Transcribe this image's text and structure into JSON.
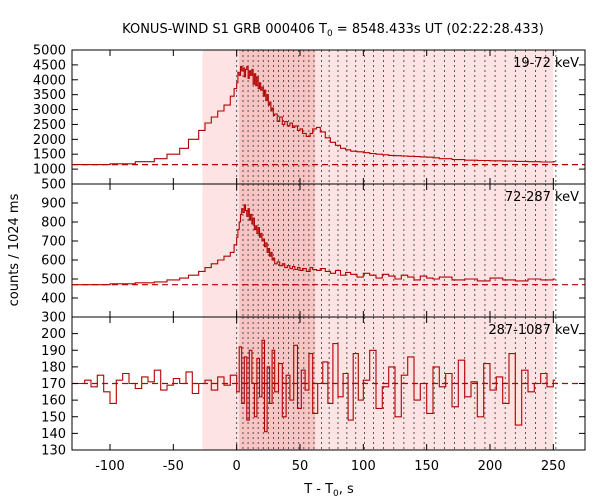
{
  "chart_data": {
    "type": "line",
    "title": "KONUS-WIND S1 GRB 000406 T",
    "title_sub": "0",
    "title_rest": " = 8548.433s UT (02:22:28.433)",
    "xlabel": "T - T",
    "xlabel_sub": "0",
    "xlabel_rest": ", s",
    "ylabel": "counts / 1024 ms",
    "xlim": [
      -130,
      275
    ],
    "xticks": [
      -100,
      -50,
      0,
      50,
      100,
      150,
      200,
      250
    ],
    "grid": false,
    "colors": {
      "series": "#b30000",
      "shade_light": "#fde3e3",
      "shade_dark": "#f8c5c5"
    },
    "shaded_regions": [
      {
        "from": -27,
        "to": 250,
        "shade": "light"
      },
      {
        "from": 2,
        "to": 62,
        "shade": "dark"
      }
    ],
    "time_markers": [
      0,
      5,
      9,
      13,
      17,
      21,
      25,
      29,
      33,
      37,
      41,
      45,
      49,
      53,
      57,
      61,
      67,
      73,
      80,
      87,
      94,
      101,
      108,
      116,
      124,
      132,
      140,
      148,
      156,
      164,
      172,
      180,
      188,
      196,
      204,
      212,
      220,
      228,
      236,
      244,
      252
    ],
    "panels": [
      {
        "name": "19-72 keV",
        "ylim": [
          500,
          5000
        ],
        "yticks": [
          500,
          1000,
          1500,
          2000,
          2500,
          3000,
          3500,
          4000,
          4500,
          5000
        ],
        "background": 1150,
        "x": [
          -130,
          -100,
          -80,
          -65,
          -55,
          -45,
          -38,
          -30,
          -25,
          -20,
          -15,
          -10,
          -5,
          -2,
          0,
          1,
          2,
          3,
          4,
          5,
          6,
          7,
          8,
          9,
          10,
          11,
          12,
          13,
          14,
          15,
          16,
          17,
          18,
          19,
          20,
          21,
          22,
          23,
          24,
          25,
          26,
          27,
          28,
          29,
          30,
          32,
          34,
          36,
          38,
          40,
          42,
          44,
          46,
          48,
          50,
          52,
          55,
          58,
          60,
          63,
          66,
          70,
          74,
          78,
          82,
          86,
          90,
          95,
          100,
          105,
          110,
          115,
          120,
          125,
          130,
          135,
          140,
          145,
          150,
          155,
          160,
          170,
          180,
          190,
          200,
          210,
          220,
          230,
          240,
          250
        ],
        "y": [
          1150,
          1180,
          1250,
          1350,
          1500,
          1700,
          2000,
          2300,
          2550,
          2750,
          2950,
          3150,
          3450,
          3700,
          3900,
          4250,
          4150,
          4450,
          4300,
          4400,
          4100,
          4350,
          4450,
          4050,
          4300,
          4150,
          4350,
          3850,
          4200,
          3800,
          4100,
          3700,
          3900,
          3650,
          3750,
          3450,
          3650,
          3300,
          3500,
          3150,
          3250,
          2950,
          3050,
          2800,
          2850,
          2600,
          2750,
          2500,
          2600,
          2450,
          2550,
          2400,
          2450,
          2300,
          2350,
          2200,
          2100,
          2200,
          2350,
          2400,
          2250,
          2050,
          1900,
          1800,
          1700,
          1650,
          1600,
          1580,
          1550,
          1520,
          1500,
          1480,
          1460,
          1450,
          1440,
          1430,
          1420,
          1410,
          1400,
          1380,
          1350,
          1320,
          1300,
          1290,
          1280,
          1270,
          1260,
          1250,
          1240,
          1250
        ]
      },
      {
        "name": "72-287 keV",
        "ylim": [
          300,
          1000
        ],
        "yticks": [
          300,
          400,
          500,
          600,
          700,
          800,
          900
        ],
        "background": 470,
        "x": [
          -130,
          -100,
          -80,
          -65,
          -55,
          -45,
          -38,
          -30,
          -25,
          -20,
          -15,
          -10,
          -5,
          -2,
          0,
          1,
          2,
          3,
          4,
          5,
          6,
          7,
          8,
          9,
          10,
          11,
          12,
          13,
          14,
          15,
          16,
          17,
          18,
          19,
          20,
          21,
          22,
          23,
          24,
          25,
          26,
          27,
          28,
          29,
          30,
          32,
          34,
          36,
          38,
          40,
          42,
          44,
          46,
          48,
          50,
          52,
          55,
          58,
          60,
          63,
          66,
          70,
          74,
          78,
          82,
          86,
          90,
          95,
          100,
          105,
          110,
          115,
          120,
          125,
          130,
          135,
          140,
          145,
          150,
          155,
          160,
          170,
          180,
          190,
          200,
          210,
          220,
          230,
          240,
          250
        ],
        "y": [
          470,
          475,
          480,
          485,
          495,
          505,
          520,
          540,
          560,
          580,
          600,
          620,
          640,
          680,
          720,
          760,
          800,
          840,
          870,
          850,
          890,
          860,
          830,
          870,
          810,
          840,
          790,
          820,
          760,
          780,
          740,
          770,
          720,
          740,
          700,
          710,
          670,
          690,
          640,
          660,
          620,
          640,
          600,
          610,
          580,
          590,
          570,
          580,
          560,
          570,
          555,
          565,
          550,
          560,
          545,
          555,
          540,
          560,
          550,
          545,
          555,
          540,
          530,
          545,
          520,
          535,
          525,
          510,
          530,
          520,
          505,
          525,
          515,
          500,
          520,
          510,
          495,
          515,
          505,
          500,
          510,
          495,
          500,
          490,
          505,
          495,
          490,
          500,
          495,
          500
        ]
      },
      {
        "name": "287-1087 keV",
        "ylim": [
          130,
          210
        ],
        "yticks": [
          130,
          140,
          150,
          160,
          170,
          180,
          190,
          200
        ],
        "background": 170,
        "x": [
          -130,
          -120,
          -115,
          -110,
          -105,
          -100,
          -95,
          -90,
          -85,
          -80,
          -75,
          -70,
          -65,
          -60,
          -55,
          -50,
          -45,
          -40,
          -35,
          -30,
          -25,
          -20,
          -15,
          -10,
          -5,
          0,
          2,
          4,
          6,
          8,
          10,
          12,
          14,
          16,
          18,
          20,
          22,
          24,
          26,
          28,
          30,
          33,
          36,
          39,
          42,
          45,
          48,
          51,
          54,
          57,
          60,
          64,
          68,
          72,
          76,
          80,
          84,
          88,
          92,
          96,
          100,
          105,
          110,
          115,
          120,
          125,
          130,
          135,
          140,
          145,
          150,
          155,
          160,
          165,
          170,
          175,
          180,
          185,
          190,
          195,
          200,
          205,
          210,
          215,
          220,
          225,
          230,
          235,
          240,
          245,
          250
        ],
        "y": [
          170,
          172,
          168,
          175,
          165,
          158,
          172,
          176,
          170,
          167,
          174,
          171,
          178,
          166,
          169,
          173,
          170,
          177,
          164,
          170,
          172,
          166,
          174,
          169,
          175,
          165,
          192,
          158,
          186,
          148,
          190,
          170,
          150,
          185,
          162,
          196,
          141,
          180,
          158,
          190,
          165,
          182,
          150,
          175,
          160,
          193,
          155,
          178,
          166,
          188,
          152,
          170,
          183,
          158,
          194,
          162,
          176,
          148,
          188,
          160,
          172,
          190,
          155,
          168,
          180,
          150,
          175,
          186,
          160,
          170,
          152,
          180,
          168,
          176,
          156,
          184,
          162,
          171,
          150,
          182,
          166,
          174,
          158,
          188,
          145,
          178,
          165,
          170,
          176,
          168,
          172
        ]
      }
    ]
  }
}
